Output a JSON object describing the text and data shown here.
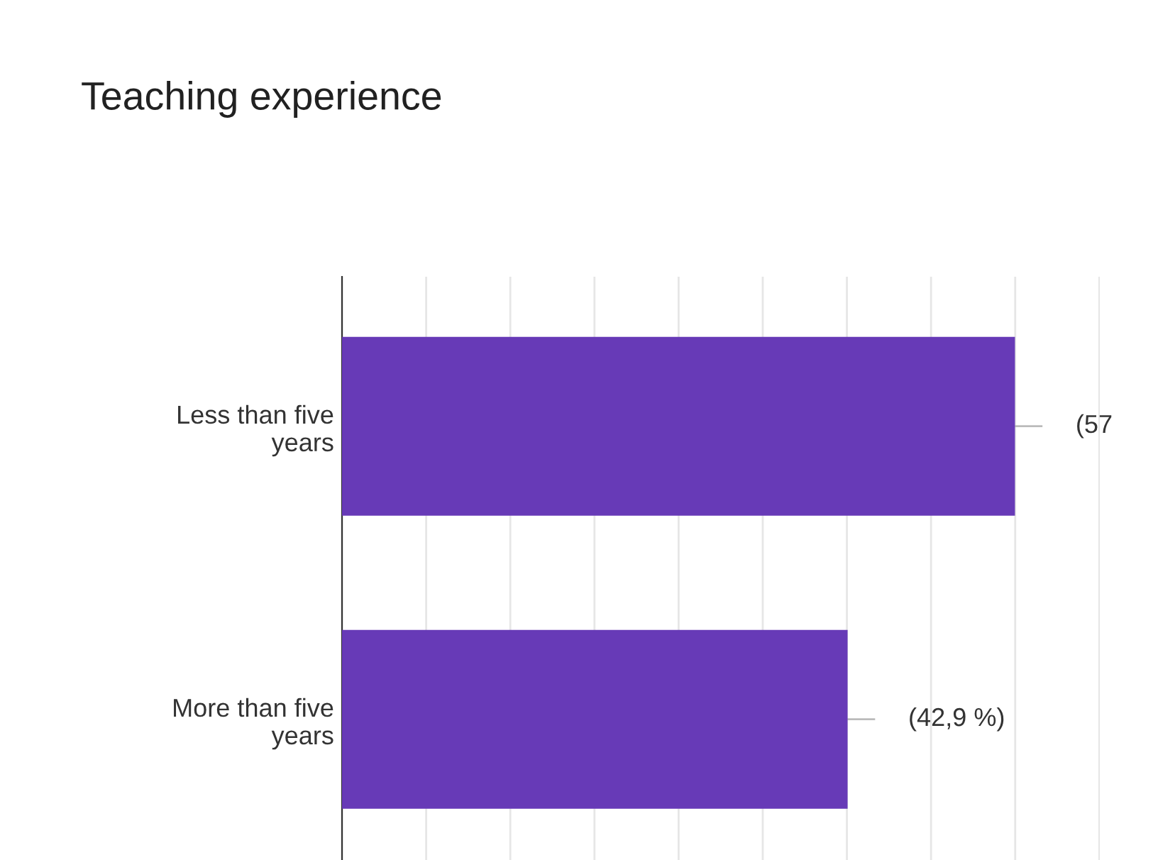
{
  "chart_data": {
    "type": "bar",
    "orientation": "horizontal",
    "title": "Teaching experience",
    "categories": [
      "Less than five\nyears",
      "More than five\nyears"
    ],
    "values": [
      57.1,
      42.9
    ],
    "color": "#673ab7",
    "value_labels": [
      "(57",
      "(42,9 %)"
    ],
    "xlim": [
      0,
      64.3
    ],
    "xticks": [
      {
        "value": 0,
        "label": null
      },
      {
        "value": 7.14,
        "label": null
      },
      {
        "value": 14.28,
        "label": null
      },
      {
        "value": 21.42,
        "label": null
      },
      {
        "value": 28.56,
        "label": null
      },
      {
        "value": 35.7,
        "label": null
      },
      {
        "value": 42.84,
        "label": null
      },
      {
        "value": 49.98,
        "label": null
      },
      {
        "value": 57.12,
        "label": null
      },
      {
        "value": 64.26,
        "label": null
      }
    ],
    "tick_labels": "y",
    "grid": "x",
    "legend": false
  }
}
